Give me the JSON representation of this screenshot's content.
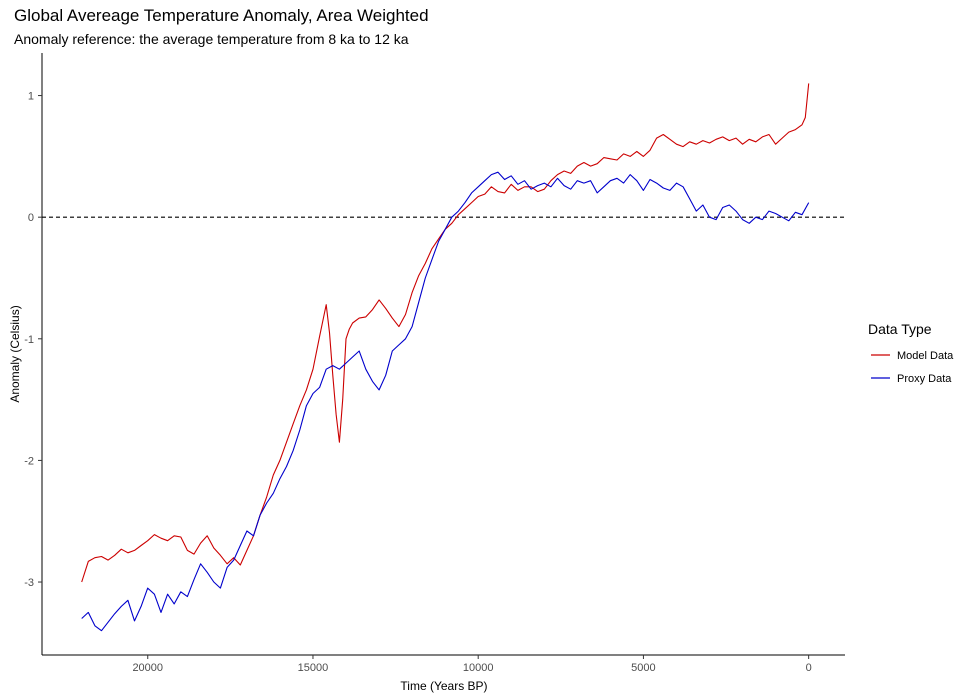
{
  "chart_data": {
    "type": "line",
    "title": "Global Avereage Temperature Anomaly, Area Weighted",
    "subtitle": "Anomaly reference: the average temperature from 8 ka to 12 ka",
    "xlabel": "Time (Years BP)",
    "ylabel": "Anomaly (Celsius)",
    "xlim": [
      23200,
      -1100
    ],
    "ylim": [
      -3.6,
      1.35
    ],
    "x_reversed": true,
    "x_ticks": [
      20000,
      15000,
      10000,
      5000,
      0
    ],
    "x_tick_labels": [
      "20000",
      "15000",
      "10000",
      "5000",
      "0"
    ],
    "y_ticks": [
      1,
      0,
      -1,
      -2,
      -3
    ],
    "y_tick_labels": [
      "1",
      "0",
      "-1",
      "-2",
      "-3"
    ],
    "reference_line": {
      "y": 0,
      "style": "dashed"
    },
    "grid": false,
    "legend": {
      "title": "Data Type",
      "position": "right"
    },
    "series": [
      {
        "name": "Model Data",
        "color": "#cc0000",
        "x": [
          22000,
          21800,
          21600,
          21400,
          21200,
          21000,
          20800,
          20600,
          20400,
          20200,
          20000,
          19800,
          19600,
          19400,
          19200,
          19000,
          18800,
          18600,
          18400,
          18200,
          18000,
          17800,
          17600,
          17400,
          17200,
          17000,
          16800,
          16600,
          16400,
          16200,
          16000,
          15800,
          15600,
          15400,
          15200,
          15000,
          14800,
          14600,
          14500,
          14400,
          14300,
          14200,
          14100,
          14000,
          13900,
          13800,
          13600,
          13400,
          13200,
          13000,
          12800,
          12600,
          12400,
          12200,
          12000,
          11800,
          11600,
          11400,
          11200,
          11000,
          10800,
          10600,
          10400,
          10200,
          10000,
          9800,
          9600,
          9400,
          9200,
          9000,
          8800,
          8600,
          8400,
          8200,
          8000,
          7800,
          7600,
          7400,
          7200,
          7000,
          6800,
          6600,
          6400,
          6200,
          6000,
          5800,
          5600,
          5400,
          5200,
          5000,
          4800,
          4600,
          4400,
          4200,
          4000,
          3800,
          3600,
          3400,
          3200,
          3000,
          2800,
          2600,
          2400,
          2200,
          2000,
          1800,
          1600,
          1400,
          1200,
          1000,
          800,
          600,
          400,
          300,
          200,
          100,
          0
        ],
        "y": [
          -3.0,
          -2.83,
          -2.8,
          -2.79,
          -2.82,
          -2.78,
          -2.73,
          -2.76,
          -2.74,
          -2.7,
          -2.66,
          -2.61,
          -2.64,
          -2.66,
          -2.62,
          -2.63,
          -2.74,
          -2.77,
          -2.68,
          -2.62,
          -2.72,
          -2.78,
          -2.85,
          -2.8,
          -2.86,
          -2.74,
          -2.62,
          -2.45,
          -2.3,
          -2.12,
          -2.0,
          -1.85,
          -1.7,
          -1.55,
          -1.42,
          -1.25,
          -0.98,
          -0.72,
          -0.95,
          -1.3,
          -1.62,
          -1.85,
          -1.5,
          -1.0,
          -0.92,
          -0.87,
          -0.83,
          -0.82,
          -0.76,
          -0.68,
          -0.75,
          -0.83,
          -0.9,
          -0.8,
          -0.62,
          -0.48,
          -0.38,
          -0.26,
          -0.18,
          -0.1,
          -0.05,
          0.02,
          0.07,
          0.12,
          0.17,
          0.19,
          0.25,
          0.21,
          0.2,
          0.27,
          0.22,
          0.25,
          0.25,
          0.21,
          0.23,
          0.3,
          0.35,
          0.38,
          0.36,
          0.42,
          0.45,
          0.42,
          0.44,
          0.49,
          0.48,
          0.47,
          0.52,
          0.5,
          0.54,
          0.5,
          0.55,
          0.65,
          0.68,
          0.64,
          0.6,
          0.58,
          0.62,
          0.6,
          0.63,
          0.61,
          0.64,
          0.66,
          0.63,
          0.65,
          0.6,
          0.64,
          0.62,
          0.66,
          0.68,
          0.6,
          0.65,
          0.7,
          0.72,
          0.74,
          0.76,
          0.82,
          1.1
        ]
      },
      {
        "name": "Proxy Data",
        "color": "#0000cc",
        "x": [
          22000,
          21800,
          21600,
          21400,
          21200,
          21000,
          20800,
          20600,
          20400,
          20200,
          20000,
          19800,
          19600,
          19400,
          19200,
          19000,
          18800,
          18600,
          18400,
          18200,
          18000,
          17800,
          17600,
          17400,
          17200,
          17000,
          16800,
          16600,
          16400,
          16200,
          16000,
          15800,
          15600,
          15400,
          15200,
          15000,
          14800,
          14600,
          14400,
          14200,
          14000,
          13800,
          13600,
          13400,
          13200,
          13000,
          12800,
          12600,
          12400,
          12200,
          12000,
          11800,
          11600,
          11400,
          11200,
          11000,
          10800,
          10600,
          10400,
          10200,
          10000,
          9800,
          9600,
          9400,
          9200,
          9000,
          8800,
          8600,
          8400,
          8200,
          8000,
          7800,
          7600,
          7400,
          7200,
          7000,
          6800,
          6600,
          6400,
          6200,
          6000,
          5800,
          5600,
          5400,
          5200,
          5000,
          4800,
          4600,
          4400,
          4200,
          4000,
          3800,
          3600,
          3400,
          3200,
          3000,
          2800,
          2600,
          2400,
          2200,
          2000,
          1800,
          1600,
          1400,
          1200,
          1000,
          800,
          600,
          400,
          200,
          0
        ],
        "y": [
          -3.3,
          -3.25,
          -3.36,
          -3.4,
          -3.33,
          -3.26,
          -3.2,
          -3.15,
          -3.32,
          -3.2,
          -3.05,
          -3.1,
          -3.25,
          -3.1,
          -3.18,
          -3.08,
          -3.12,
          -2.98,
          -2.85,
          -2.92,
          -3.0,
          -3.05,
          -2.88,
          -2.82,
          -2.7,
          -2.58,
          -2.62,
          -2.45,
          -2.35,
          -2.27,
          -2.15,
          -2.05,
          -1.92,
          -1.75,
          -1.55,
          -1.45,
          -1.4,
          -1.25,
          -1.22,
          -1.25,
          -1.2,
          -1.15,
          -1.1,
          -1.25,
          -1.35,
          -1.42,
          -1.3,
          -1.1,
          -1.05,
          -1.0,
          -0.9,
          -0.7,
          -0.5,
          -0.35,
          -0.2,
          -0.1,
          0.0,
          0.05,
          0.12,
          0.2,
          0.25,
          0.3,
          0.35,
          0.37,
          0.31,
          0.34,
          0.27,
          0.3,
          0.23,
          0.26,
          0.28,
          0.25,
          0.32,
          0.26,
          0.23,
          0.3,
          0.28,
          0.3,
          0.2,
          0.25,
          0.3,
          0.32,
          0.28,
          0.35,
          0.3,
          0.22,
          0.31,
          0.28,
          0.24,
          0.22,
          0.28,
          0.25,
          0.15,
          0.05,
          0.1,
          0.0,
          -0.02,
          0.08,
          0.1,
          0.05,
          -0.02,
          -0.05,
          0.0,
          -0.02,
          0.05,
          0.03,
          0.0,
          -0.03,
          0.04,
          0.02,
          0.12
        ]
      }
    ]
  }
}
